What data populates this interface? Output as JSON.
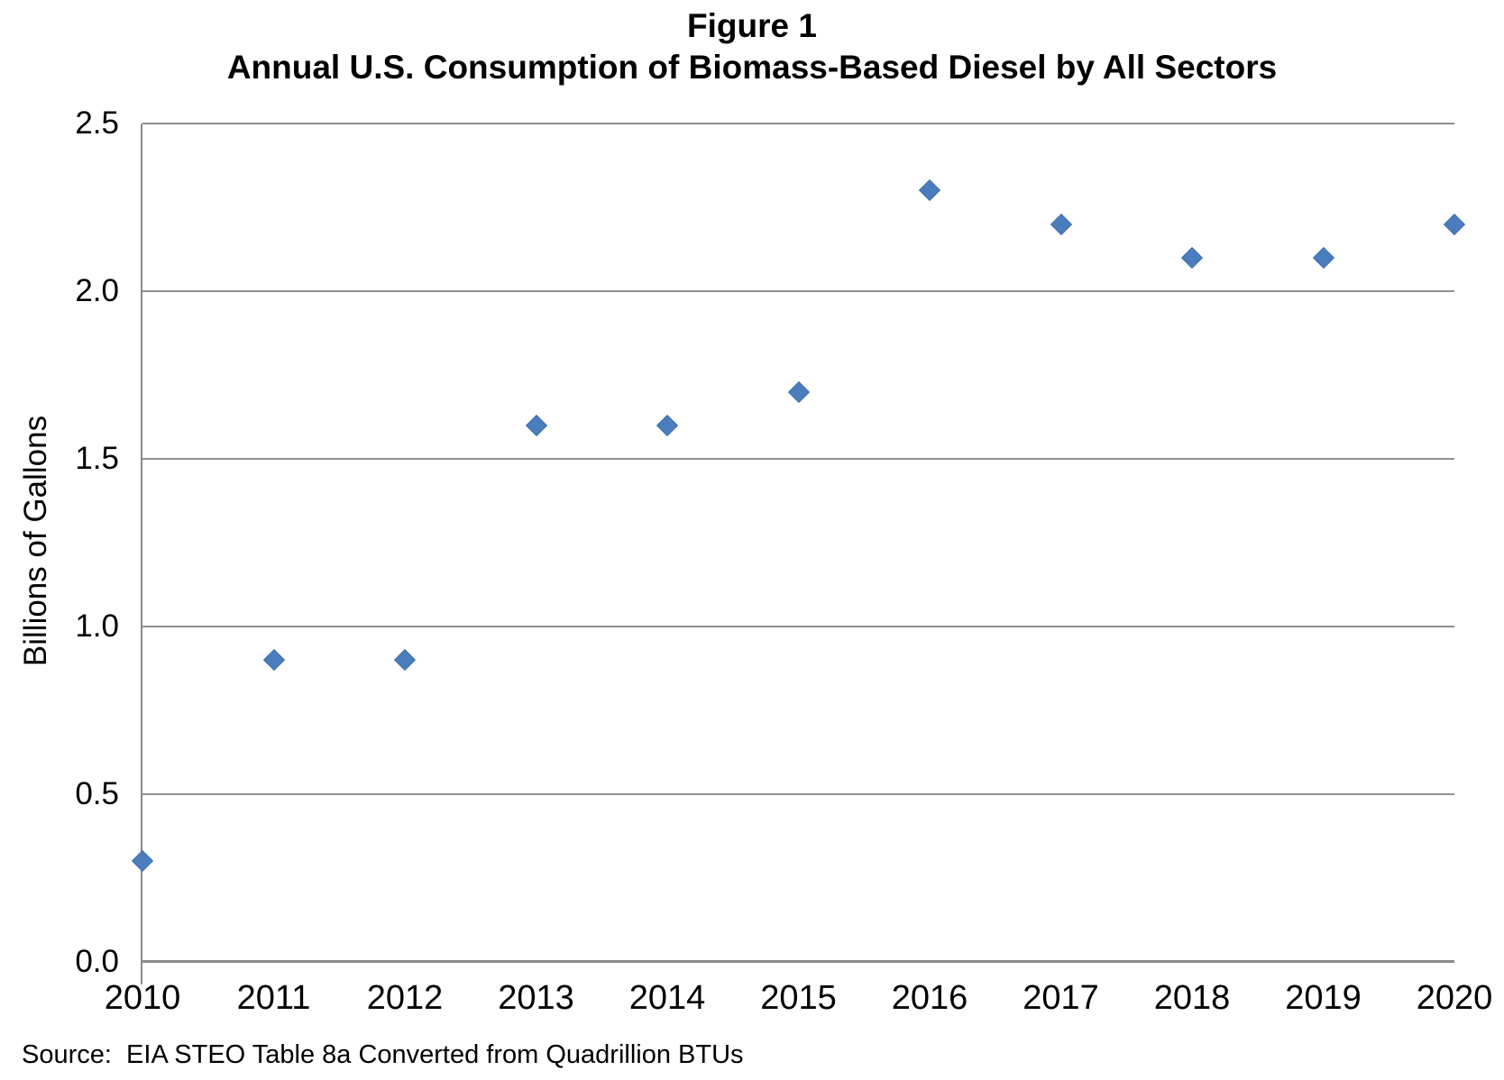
{
  "chart_data": {
    "type": "scatter",
    "title_line1": "Figure 1",
    "title_line2": "Annual U.S. Consumption of Biomass-Based Diesel by All Sectors",
    "ylabel": "Billions of Gallons",
    "xlabel": "",
    "categories": [
      "2010",
      "2011",
      "2012",
      "2013",
      "2014",
      "2015",
      "2016",
      "2017",
      "2018",
      "2019",
      "2020"
    ],
    "values": [
      0.3,
      0.9,
      0.9,
      1.6,
      1.6,
      1.7,
      2.3,
      2.2,
      2.1,
      2.1,
      2.2
    ],
    "ylim": [
      0.0,
      2.5
    ],
    "ytick_labels": [
      "0.0",
      "0.5",
      "1.0",
      "1.5",
      "2.0",
      "2.5"
    ],
    "grid": "horizontal",
    "legend": "none",
    "marker": "diamond",
    "source_note": "Source:  EIA STEO Table 8a Converted from Quadrillion BTUs",
    "colors": {
      "marker_fill": "#4a7dbe",
      "marker_edge": "#3e6fa9",
      "gridline": "#8f8f8f",
      "axis_line": "#8a8a8a",
      "text": "#000000"
    }
  }
}
